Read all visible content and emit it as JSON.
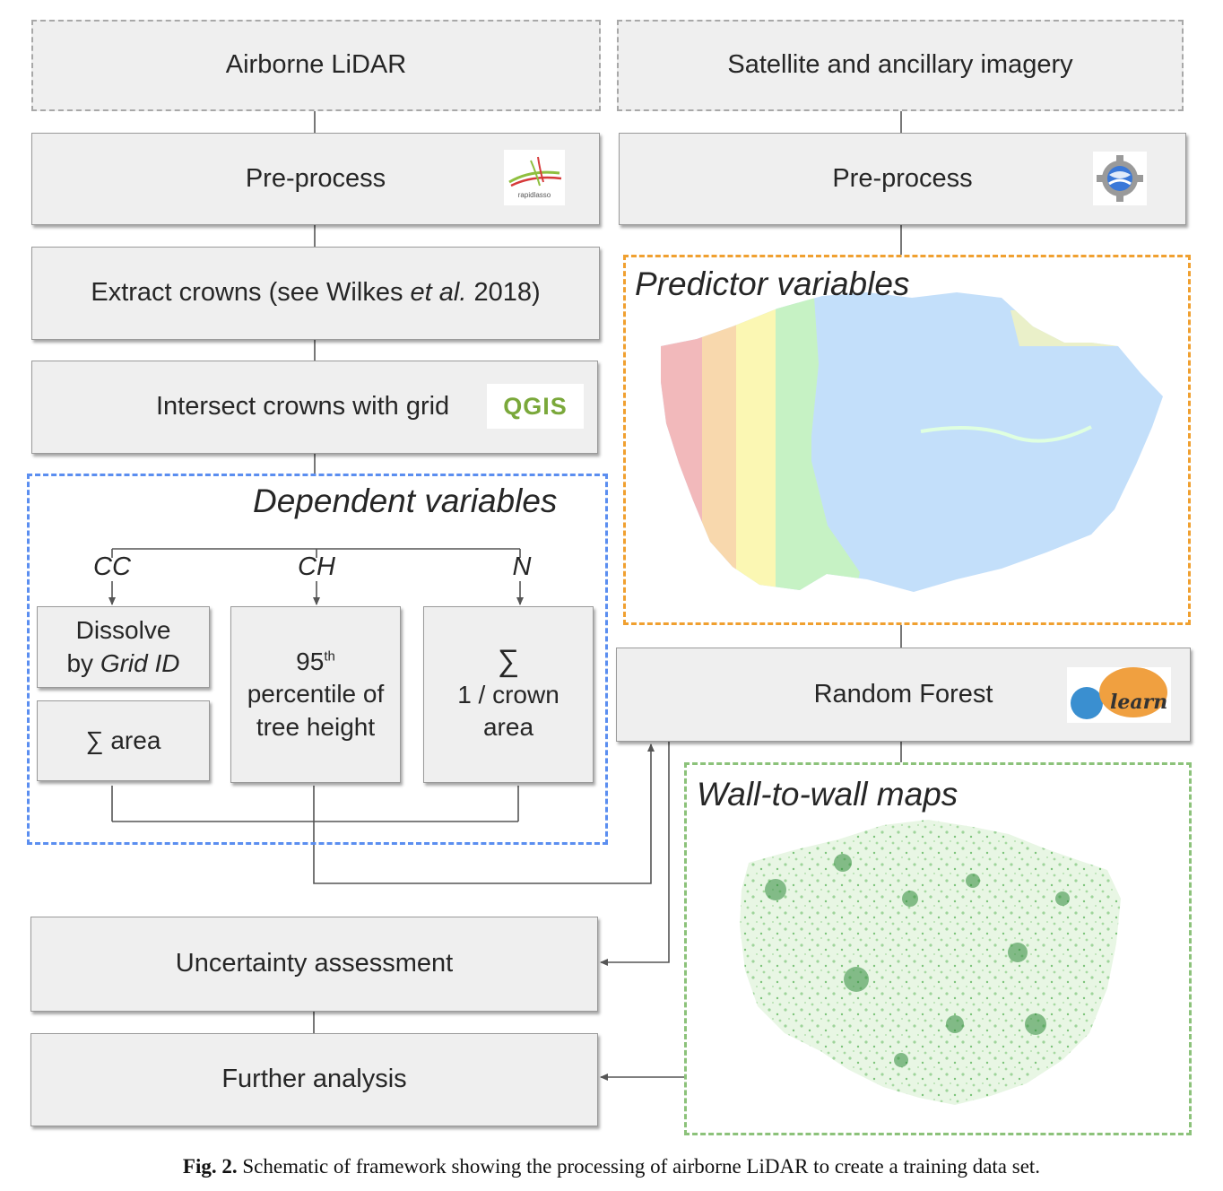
{
  "sources": {
    "lidar": "Airborne LiDAR",
    "satellite": "Satellite and ancillary imagery"
  },
  "left": {
    "preprocess": "Pre-process",
    "extract_prefix": "Extract crowns (see Wilkes ",
    "extract_italic": "et al.",
    "extract_suffix": " 2018)",
    "intersect": "Intersect crowns with grid",
    "qgis_logo": "QGIS",
    "rapidlasso_logo": "rapidlasso"
  },
  "right": {
    "preprocess": "Pre-process",
    "random_forest": "Random Forest",
    "sklearn_logo": "learn"
  },
  "dependent": {
    "title": "Dependent variables",
    "labels": {
      "cc": "CC",
      "ch": "CH",
      "n": "N"
    },
    "dissolve_line1": "Dissolve",
    "dissolve_prefix": "by ",
    "dissolve_italic": "Grid ID",
    "sum_area": "∑ area",
    "pct_number": "95",
    "pct_sup": "th",
    "pct_rest": "percentile of tree height",
    "sum_symbol": "∑",
    "crown_text": "1 / crown area"
  },
  "predictor": {
    "title": "Predictor variables"
  },
  "wall": {
    "title": "Wall-to-wall maps"
  },
  "bottom": {
    "uncertainty": "Uncertainty assessment",
    "further": "Further analysis"
  },
  "caption": {
    "label": "Fig. 2.",
    "text": " Schematic of framework showing the processing of airborne LiDAR to create a training data set."
  },
  "colors": {
    "dependent_border": "#5b8ef0",
    "predictor_border": "#f0a030",
    "wall_border": "#8cc27a",
    "map_blue": "#c3dffa",
    "map_green": "#c6f2c4",
    "map_yellow": "#fbf7b3",
    "map_orange": "#f8d8ad",
    "map_pink": "#f2b9bb"
  }
}
